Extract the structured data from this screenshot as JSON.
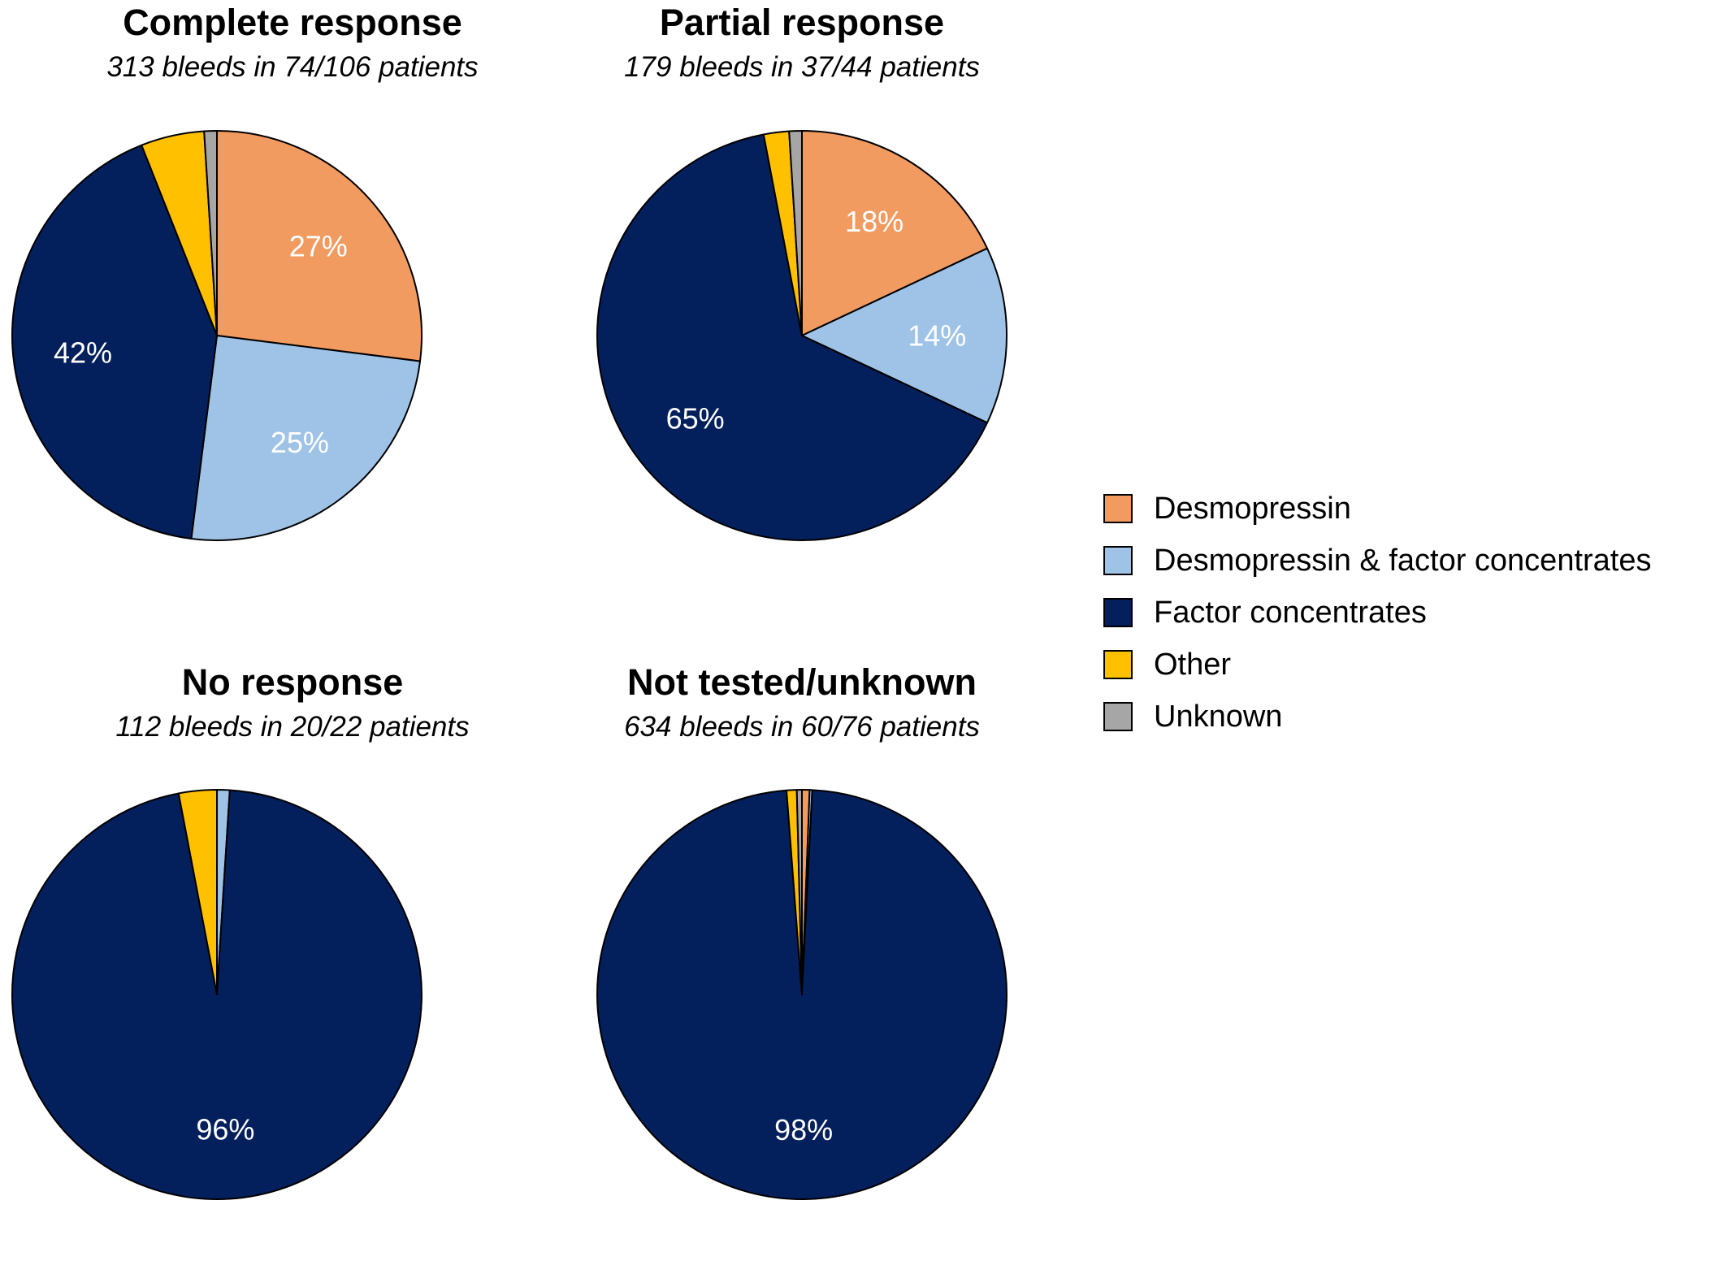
{
  "legend": [
    {
      "name": "Desmopressin",
      "color": "#F19B61"
    },
    {
      "name": "Desmopressin & factor concentrates",
      "color": "#9FC3E7"
    },
    {
      "name": "Factor concentrates",
      "color": "#031F5C"
    },
    {
      "name": "Other",
      "color": "#FFC000"
    },
    {
      "name": "Unknown",
      "color": "#A6A6A6"
    }
  ],
  "chart_data": [
    {
      "type": "pie",
      "title": "Complete response",
      "subtitle": "313 bleeds in 74/106 patients",
      "slices": [
        {
          "category": "Desmopressin",
          "value": 27,
          "label": "27%"
        },
        {
          "category": "Desmopressin & factor concentrates",
          "value": 25,
          "label": "25%"
        },
        {
          "category": "Factor concentrates",
          "value": 42,
          "label": "42%"
        },
        {
          "category": "Other",
          "value": 5,
          "label": ""
        },
        {
          "category": "Unknown",
          "value": 1,
          "label": ""
        }
      ]
    },
    {
      "type": "pie",
      "title": "Partial response",
      "subtitle": "179 bleeds in 37/44 patients",
      "slices": [
        {
          "category": "Desmopressin",
          "value": 18,
          "label": "18%"
        },
        {
          "category": "Desmopressin & factor concentrates",
          "value": 14,
          "label": "14%"
        },
        {
          "category": "Factor concentrates",
          "value": 65,
          "label": "65%"
        },
        {
          "category": "Other",
          "value": 2,
          "label": ""
        },
        {
          "category": "Unknown",
          "value": 1,
          "label": ""
        }
      ]
    },
    {
      "type": "pie",
      "title": "No response",
      "subtitle": "112 bleeds in 20/22 patients",
      "slices": [
        {
          "category": "Desmopressin",
          "value": 0,
          "label": ""
        },
        {
          "category": "Desmopressin & factor concentrates",
          "value": 1,
          "label": ""
        },
        {
          "category": "Factor concentrates",
          "value": 96,
          "label": "96%"
        },
        {
          "category": "Other",
          "value": 3,
          "label": ""
        },
        {
          "category": "Unknown",
          "value": 0,
          "label": ""
        }
      ]
    },
    {
      "type": "pie",
      "title": "Not tested/unknown",
      "subtitle": "634 bleeds in 60/76 patients",
      "slices": [
        {
          "category": "Desmopressin",
          "value": 0.6,
          "label": ""
        },
        {
          "category": "Desmopressin & factor concentrates",
          "value": 0.2,
          "label": ""
        },
        {
          "category": "Factor concentrates",
          "value": 98,
          "label": "98%"
        },
        {
          "category": "Other",
          "value": 0.8,
          "label": ""
        },
        {
          "category": "Unknown",
          "value": 0.4,
          "label": ""
        }
      ]
    }
  ]
}
